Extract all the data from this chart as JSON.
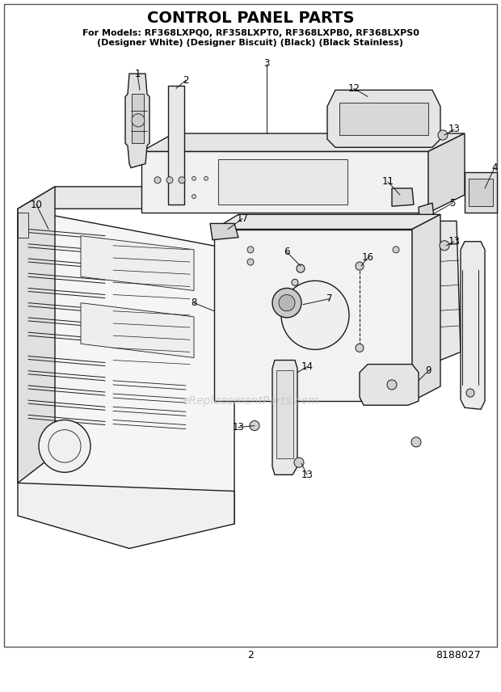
{
  "title": "CONTROL PANEL PARTS",
  "subtitle_line1": "For Models: RF368LXPQ0, RF358LXPT0, RF368LXPB0, RF368LXPS0",
  "subtitle_line2": "(Designer White) (Designer Biscuit) (Black) (Black Stainless)",
  "page_number": "2",
  "doc_number": "8188027",
  "watermark": "eReplacementParts.com",
  "bg_color": "#ffffff",
  "lc": "#1a1a1a",
  "lw_main": 1.0,
  "lw_thin": 0.6,
  "label_fontsize": 8.5,
  "title_fontsize": 14,
  "subtitle_fontsize": 8
}
